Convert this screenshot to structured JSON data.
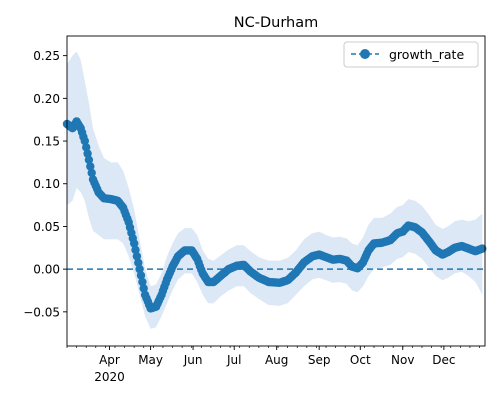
{
  "chart_data": {
    "type": "line",
    "title": "NC-Durham",
    "xlabel": "",
    "ylabel": "",
    "x_start": "2020-03-01",
    "x_end": "2020-12-31",
    "ylim": [
      -0.09,
      0.273
    ],
    "xticks": [
      {
        "date": "2020-04-01",
        "label": "Apr",
        "sublabel": "2020"
      },
      {
        "date": "2020-05-01",
        "label": "May"
      },
      {
        "date": "2020-06-01",
        "label": "Jun"
      },
      {
        "date": "2020-07-01",
        "label": "Jul"
      },
      {
        "date": "2020-08-01",
        "label": "Aug"
      },
      {
        "date": "2020-09-01",
        "label": "Sep"
      },
      {
        "date": "2020-10-01",
        "label": "Oct"
      },
      {
        "date": "2020-11-01",
        "label": "Nov"
      },
      {
        "date": "2020-12-01",
        "label": "Dec"
      }
    ],
    "yticks": [
      {
        "value": -0.05,
        "label": "−0.05"
      },
      {
        "value": 0.0,
        "label": "0.00"
      },
      {
        "value": 0.05,
        "label": "0.05"
      },
      {
        "value": 0.1,
        "label": "0.10"
      },
      {
        "value": 0.15,
        "label": "0.15"
      },
      {
        "value": 0.2,
        "label": "0.20"
      },
      {
        "value": 0.25,
        "label": "0.25"
      }
    ],
    "grid": false,
    "legend_position": "top-right",
    "reference_line": {
      "value": 0.0,
      "style": "dashed"
    },
    "series": [
      {
        "name": "growth_rate",
        "color": "#1f77b4",
        "band_color": "#dce8f5",
        "points": [
          {
            "date": "2020-03-01",
            "y": 0.17,
            "lo": 0.075,
            "hi": 0.24
          },
          {
            "date": "2020-03-05",
            "y": 0.165,
            "lo": 0.08,
            "hi": 0.25
          },
          {
            "date": "2020-03-08",
            "y": 0.173,
            "lo": 0.095,
            "hi": 0.255
          },
          {
            "date": "2020-03-11",
            "y": 0.165,
            "lo": 0.09,
            "hi": 0.245
          },
          {
            "date": "2020-03-14",
            "y": 0.15,
            "lo": 0.08,
            "hi": 0.22
          },
          {
            "date": "2020-03-17",
            "y": 0.128,
            "lo": 0.06,
            "hi": 0.195
          },
          {
            "date": "2020-03-20",
            "y": 0.105,
            "lo": 0.045,
            "hi": 0.165
          },
          {
            "date": "2020-03-24",
            "y": 0.09,
            "lo": 0.04,
            "hi": 0.145
          },
          {
            "date": "2020-03-28",
            "y": 0.083,
            "lo": 0.035,
            "hi": 0.13
          },
          {
            "date": "2020-04-02",
            "y": 0.082,
            "lo": 0.035,
            "hi": 0.125
          },
          {
            "date": "2020-04-07",
            "y": 0.08,
            "lo": 0.035,
            "hi": 0.125
          },
          {
            "date": "2020-04-11",
            "y": 0.072,
            "lo": 0.03,
            "hi": 0.115
          },
          {
            "date": "2020-04-15",
            "y": 0.055,
            "lo": 0.015,
            "hi": 0.095
          },
          {
            "date": "2020-04-19",
            "y": 0.03,
            "lo": -0.005,
            "hi": 0.07
          },
          {
            "date": "2020-04-23",
            "y": 0.0,
            "lo": -0.03,
            "hi": 0.035
          },
          {
            "date": "2020-04-27",
            "y": -0.03,
            "lo": -0.055,
            "hi": 0.0
          },
          {
            "date": "2020-05-01",
            "y": -0.046,
            "lo": -0.07,
            "hi": -0.02
          },
          {
            "date": "2020-05-05",
            "y": -0.044,
            "lo": -0.068,
            "hi": -0.018
          },
          {
            "date": "2020-05-09",
            "y": -0.03,
            "lo": -0.055,
            "hi": -0.005
          },
          {
            "date": "2020-05-13",
            "y": -0.012,
            "lo": -0.04,
            "hi": 0.015
          },
          {
            "date": "2020-05-17",
            "y": 0.003,
            "lo": -0.025,
            "hi": 0.03
          },
          {
            "date": "2020-05-21",
            "y": 0.015,
            "lo": -0.012,
            "hi": 0.042
          },
          {
            "date": "2020-05-26",
            "y": 0.022,
            "lo": -0.005,
            "hi": 0.048
          },
          {
            "date": "2020-05-31",
            "y": 0.022,
            "lo": -0.005,
            "hi": 0.048
          },
          {
            "date": "2020-06-04",
            "y": 0.012,
            "lo": -0.015,
            "hi": 0.04
          },
          {
            "date": "2020-06-08",
            "y": -0.005,
            "lo": -0.03,
            "hi": 0.022
          },
          {
            "date": "2020-06-12",
            "y": -0.015,
            "lo": -0.04,
            "hi": 0.012
          },
          {
            "date": "2020-06-16",
            "y": -0.015,
            "lo": -0.04,
            "hi": 0.01
          },
          {
            "date": "2020-06-21",
            "y": -0.008,
            "lo": -0.032,
            "hi": 0.016
          },
          {
            "date": "2020-06-27",
            "y": 0.0,
            "lo": -0.025,
            "hi": 0.023
          },
          {
            "date": "2020-07-03",
            "y": 0.004,
            "lo": -0.02,
            "hi": 0.028
          },
          {
            "date": "2020-07-08",
            "y": 0.005,
            "lo": -0.02,
            "hi": 0.028
          },
          {
            "date": "2020-07-13",
            "y": -0.003,
            "lo": -0.028,
            "hi": 0.021
          },
          {
            "date": "2020-07-19",
            "y": -0.01,
            "lo": -0.035,
            "hi": 0.014
          },
          {
            "date": "2020-07-26",
            "y": -0.015,
            "lo": -0.042,
            "hi": 0.01
          },
          {
            "date": "2020-08-03",
            "y": -0.016,
            "lo": -0.043,
            "hi": 0.01
          },
          {
            "date": "2020-08-09",
            "y": -0.013,
            "lo": -0.04,
            "hi": 0.013
          },
          {
            "date": "2020-08-15",
            "y": -0.004,
            "lo": -0.03,
            "hi": 0.022
          },
          {
            "date": "2020-08-21",
            "y": 0.008,
            "lo": -0.02,
            "hi": 0.035
          },
          {
            "date": "2020-08-27",
            "y": 0.015,
            "lo": -0.012,
            "hi": 0.042
          },
          {
            "date": "2020-09-01",
            "y": 0.017,
            "lo": -0.01,
            "hi": 0.044
          },
          {
            "date": "2020-09-06",
            "y": 0.014,
            "lo": -0.013,
            "hi": 0.04
          },
          {
            "date": "2020-09-11",
            "y": 0.011,
            "lo": -0.016,
            "hi": 0.037
          },
          {
            "date": "2020-09-16",
            "y": 0.012,
            "lo": -0.015,
            "hi": 0.038
          },
          {
            "date": "2020-09-21",
            "y": 0.01,
            "lo": -0.017,
            "hi": 0.036
          },
          {
            "date": "2020-09-25",
            "y": 0.003,
            "lo": -0.025,
            "hi": 0.03
          },
          {
            "date": "2020-09-29",
            "y": 0.001,
            "lo": -0.027,
            "hi": 0.028
          },
          {
            "date": "2020-10-03",
            "y": 0.008,
            "lo": -0.02,
            "hi": 0.037
          },
          {
            "date": "2020-10-07",
            "y": 0.022,
            "lo": -0.008,
            "hi": 0.052
          },
          {
            "date": "2020-10-11",
            "y": 0.03,
            "lo": 0.0,
            "hi": 0.06
          },
          {
            "date": "2020-10-17",
            "y": 0.031,
            "lo": 0.002,
            "hi": 0.06
          },
          {
            "date": "2020-10-23",
            "y": 0.034,
            "lo": 0.005,
            "hi": 0.065
          },
          {
            "date": "2020-10-28",
            "y": 0.042,
            "lo": 0.012,
            "hi": 0.073
          },
          {
            "date": "2020-11-01",
            "y": 0.044,
            "lo": 0.014,
            "hi": 0.075
          },
          {
            "date": "2020-11-05",
            "y": 0.051,
            "lo": 0.02,
            "hi": 0.082
          },
          {
            "date": "2020-11-10",
            "y": 0.049,
            "lo": 0.018,
            "hi": 0.08
          },
          {
            "date": "2020-11-15",
            "y": 0.043,
            "lo": 0.012,
            "hi": 0.074
          },
          {
            "date": "2020-11-20",
            "y": 0.033,
            "lo": 0.002,
            "hi": 0.064
          },
          {
            "date": "2020-11-25",
            "y": 0.022,
            "lo": -0.008,
            "hi": 0.052
          },
          {
            "date": "2020-11-30",
            "y": 0.017,
            "lo": -0.013,
            "hi": 0.047
          },
          {
            "date": "2020-12-04",
            "y": 0.02,
            "lo": -0.01,
            "hi": 0.05
          },
          {
            "date": "2020-12-09",
            "y": 0.025,
            "lo": -0.005,
            "hi": 0.056
          },
          {
            "date": "2020-12-14",
            "y": 0.027,
            "lo": -0.003,
            "hi": 0.058
          },
          {
            "date": "2020-12-19",
            "y": 0.024,
            "lo": -0.008,
            "hi": 0.056
          },
          {
            "date": "2020-12-24",
            "y": 0.021,
            "lo": -0.015,
            "hi": 0.058
          },
          {
            "date": "2020-12-29",
            "y": 0.024,
            "lo": -0.03,
            "hi": 0.065
          }
        ]
      }
    ]
  }
}
